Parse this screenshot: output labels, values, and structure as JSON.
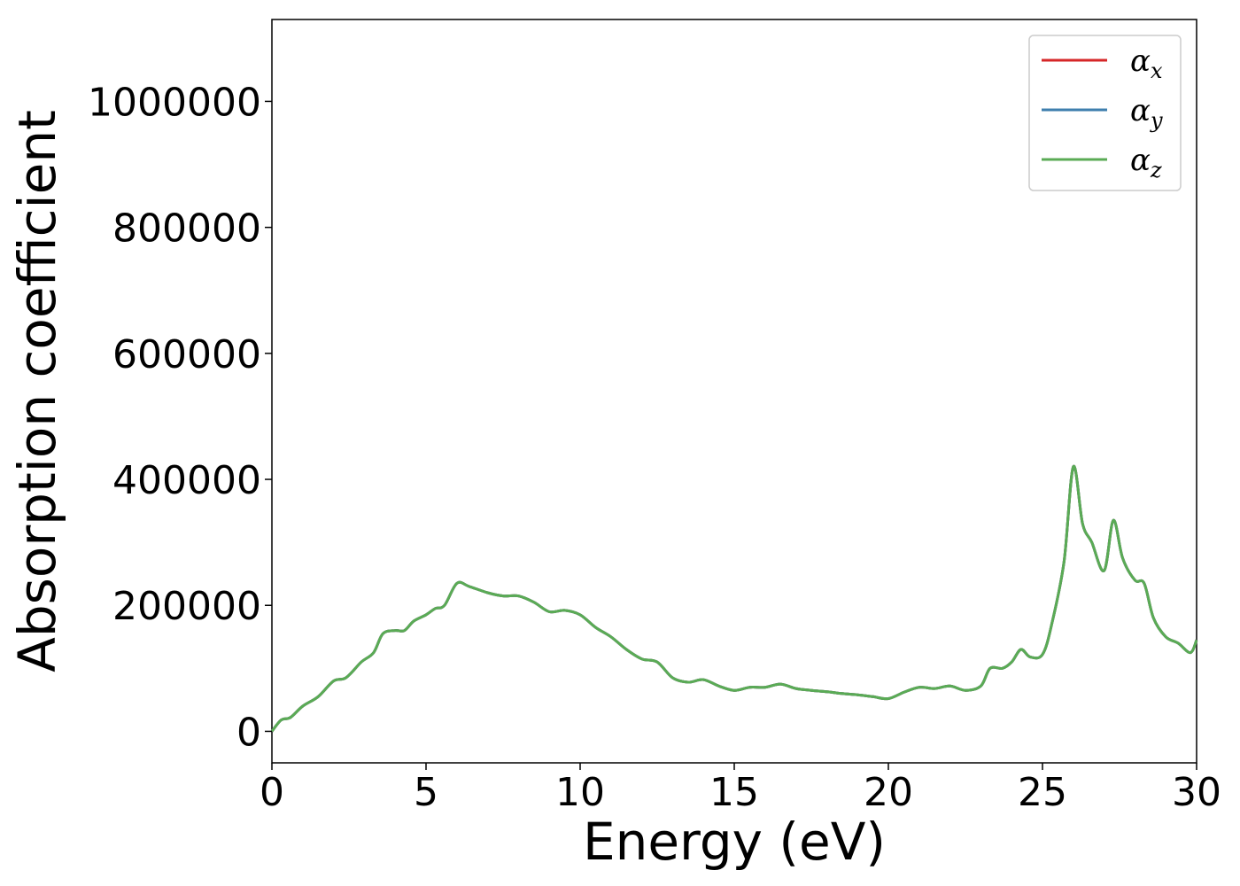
{
  "chart_data": {
    "type": "line",
    "title": "",
    "xlabel": "Energy (eV)",
    "ylabel": "Absorption coefficient",
    "xlim": [
      0,
      30
    ],
    "ylim": [
      -50000,
      1130000
    ],
    "xticks": [
      0,
      5,
      10,
      15,
      20,
      25,
      30
    ],
    "yticks": [
      0,
      200000,
      400000,
      600000,
      800000,
      1000000
    ],
    "xtick_labels": [
      "0",
      "5",
      "10",
      "15",
      "20",
      "25",
      "30"
    ],
    "ytick_labels": [
      "0",
      "200000",
      "400000",
      "600000",
      "800000",
      "1000000"
    ],
    "grid": false,
    "legend_position": "top-right",
    "x": [
      0,
      0.3,
      0.6,
      1.0,
      1.5,
      2.0,
      2.4,
      2.9,
      3.3,
      3.6,
      4.0,
      4.3,
      4.6,
      5.0,
      5.3,
      5.6,
      6.0,
      6.4,
      7.0,
      7.5,
      8.0,
      8.5,
      9.0,
      9.5,
      10.0,
      10.5,
      11.0,
      11.5,
      12.0,
      12.5,
      13.0,
      13.5,
      14.0,
      14.5,
      15.0,
      15.5,
      16.0,
      16.5,
      17.0,
      17.5,
      18.0,
      18.5,
      19.0,
      19.5,
      20.0,
      20.5,
      21.0,
      21.5,
      22.0,
      22.5,
      23.0,
      23.3,
      23.7,
      24.0,
      24.3,
      24.6,
      25.0,
      25.3,
      25.7,
      26.0,
      26.3,
      26.6,
      27.0,
      27.3,
      27.6,
      28.0,
      28.3,
      28.6,
      29.0,
      29.4,
      29.8,
      30.0
    ],
    "series": [
      {
        "name": "α_x",
        "color": "#d62728",
        "values": [
          0,
          18000,
          22000,
          40000,
          55000,
          80000,
          85000,
          110000,
          125000,
          155000,
          160000,
          160000,
          175000,
          185000,
          195000,
          200000,
          235000,
          230000,
          220000,
          215000,
          215000,
          205000,
          190000,
          192000,
          185000,
          165000,
          150000,
          130000,
          115000,
          110000,
          85000,
          78000,
          82000,
          72000,
          65000,
          70000,
          70000,
          75000,
          68000,
          65000,
          63000,
          60000,
          58000,
          55000,
          52000,
          62000,
          70000,
          68000,
          72000,
          65000,
          72000,
          100000,
          100000,
          110000,
          130000,
          118000,
          122000,
          170000,
          270000,
          420000,
          330000,
          300000,
          255000,
          335000,
          275000,
          240000,
          235000,
          180000,
          150000,
          140000,
          125000,
          145000
        ]
      },
      {
        "name": "α_y",
        "color": "#3f7fae",
        "values": [
          0,
          18000,
          22000,
          40000,
          55000,
          80000,
          85000,
          110000,
          125000,
          155000,
          160000,
          160000,
          175000,
          185000,
          195000,
          200000,
          235000,
          230000,
          220000,
          215000,
          215000,
          205000,
          190000,
          192000,
          185000,
          165000,
          150000,
          130000,
          115000,
          110000,
          85000,
          78000,
          82000,
          72000,
          65000,
          70000,
          70000,
          75000,
          68000,
          65000,
          63000,
          60000,
          58000,
          55000,
          52000,
          62000,
          70000,
          68000,
          72000,
          65000,
          72000,
          100000,
          100000,
          110000,
          130000,
          118000,
          122000,
          170000,
          270000,
          420000,
          330000,
          300000,
          255000,
          335000,
          275000,
          240000,
          235000,
          180000,
          150000,
          140000,
          125000,
          145000
        ]
      },
      {
        "name": "α_z",
        "color": "#5aab55",
        "values": [
          0,
          18000,
          22000,
          40000,
          55000,
          80000,
          85000,
          110000,
          125000,
          155000,
          160000,
          160000,
          175000,
          185000,
          195000,
          200000,
          235000,
          230000,
          220000,
          215000,
          215000,
          205000,
          190000,
          192000,
          185000,
          165000,
          150000,
          130000,
          115000,
          110000,
          85000,
          78000,
          82000,
          72000,
          65000,
          70000,
          70000,
          75000,
          68000,
          65000,
          63000,
          60000,
          58000,
          55000,
          52000,
          62000,
          70000,
          68000,
          72000,
          65000,
          72000,
          100000,
          100000,
          110000,
          130000,
          118000,
          122000,
          170000,
          270000,
          420000,
          330000,
          300000,
          255000,
          335000,
          275000,
          240000,
          235000,
          180000,
          150000,
          140000,
          125000,
          145000
        ]
      }
    ],
    "legend": [
      {
        "symbol": "α",
        "subscript": "x",
        "color": "#d62728"
      },
      {
        "symbol": "α",
        "subscript": "y",
        "color": "#3f7fae"
      },
      {
        "symbol": "α",
        "subscript": "z",
        "color": "#5aab55"
      }
    ]
  }
}
